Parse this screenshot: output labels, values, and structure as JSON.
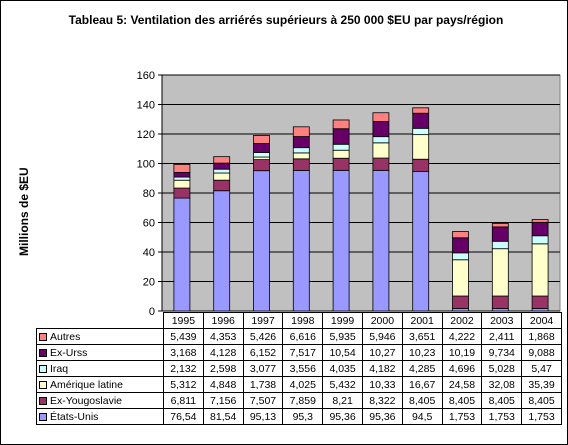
{
  "title": "Tableau 5: Ventilation des arriérés supérieurs à 250 000 $EU par pays/région",
  "chart_data": {
    "type": "bar",
    "stacked": true,
    "title": "Tableau 5: Ventilation des arriérés supérieurs à 250 000 $EU par pays/région",
    "ylabel": "Millions de $EU",
    "ylim": [
      0,
      160
    ],
    "yticks": [
      "0",
      "20",
      "40",
      "60",
      "80",
      "100",
      "120",
      "140",
      "160"
    ],
    "grid": true,
    "plot_background": "#c0c0c0",
    "categories": [
      "1995",
      "1996",
      "1997",
      "1998",
      "1999",
      "2000",
      "2001",
      "2002",
      "2003",
      "2004"
    ],
    "series": [
      {
        "name": "États-Unis",
        "color": "#9999ff",
        "labels": [
          "76,54",
          "81,54",
          "95,13",
          "95,3",
          "95,36",
          "95,36",
          "94,5",
          "1,753",
          "1,753",
          "1,753"
        ],
        "values": [
          76.54,
          81.54,
          95.13,
          95.3,
          95.36,
          95.36,
          94.5,
          1.753,
          1.753,
          1.753
        ]
      },
      {
        "name": "Ex-Yougoslavie",
        "color": "#993366",
        "labels": [
          "6,811",
          "7,156",
          "7,507",
          "7,859",
          "8,21",
          "8,322",
          "8,405",
          "8,405",
          "8,405",
          "8,405"
        ],
        "values": [
          6.811,
          7.156,
          7.507,
          7.859,
          8.21,
          8.322,
          8.405,
          8.405,
          8.405,
          8.405
        ]
      },
      {
        "name": "Amérique latine",
        "color": "#ffffcc",
        "labels": [
          "5,312",
          "4,848",
          "1,738",
          "4,025",
          "5,432",
          "10,33",
          "16,67",
          "24,58",
          "32,08",
          "35,39"
        ],
        "values": [
          5.312,
          4.848,
          1.738,
          4.025,
          5.432,
          10.33,
          16.67,
          24.58,
          32.08,
          35.39
        ]
      },
      {
        "name": "Iraq",
        "color": "#ccffff",
        "labels": [
          "2,132",
          "2,598",
          "3,077",
          "3,556",
          "4,035",
          "4,182",
          "4,285",
          "4,696",
          "5,028",
          "5,47"
        ],
        "values": [
          2.132,
          2.598,
          3.077,
          3.556,
          4.035,
          4.182,
          4.285,
          4.696,
          5.028,
          5.47
        ]
      },
      {
        "name": "Ex-Urss",
        "color": "#660066",
        "labels": [
          "3,168",
          "4,128",
          "6,152",
          "7,517",
          "10,54",
          "10,27",
          "10,23",
          "10,19",
          "9,734",
          "9,088"
        ],
        "values": [
          3.168,
          4.128,
          6.152,
          7.517,
          10.54,
          10.27,
          10.23,
          10.19,
          9.734,
          9.088
        ]
      },
      {
        "name": "Autres",
        "color": "#ff8080",
        "labels": [
          "5,439",
          "4,353",
          "5,426",
          "6,616",
          "5,935",
          "5,946",
          "3,651",
          "4,222",
          "2,411",
          "1,868"
        ],
        "values": [
          5.439,
          4.353,
          5.426,
          6.616,
          5.935,
          5.946,
          3.651,
          4.222,
          2.411,
          1.868
        ]
      }
    ],
    "table_row_order": [
      "Autres",
      "Ex-Urss",
      "Iraq",
      "Amérique latine",
      "Ex-Yougoslavie",
      "États-Unis"
    ]
  }
}
